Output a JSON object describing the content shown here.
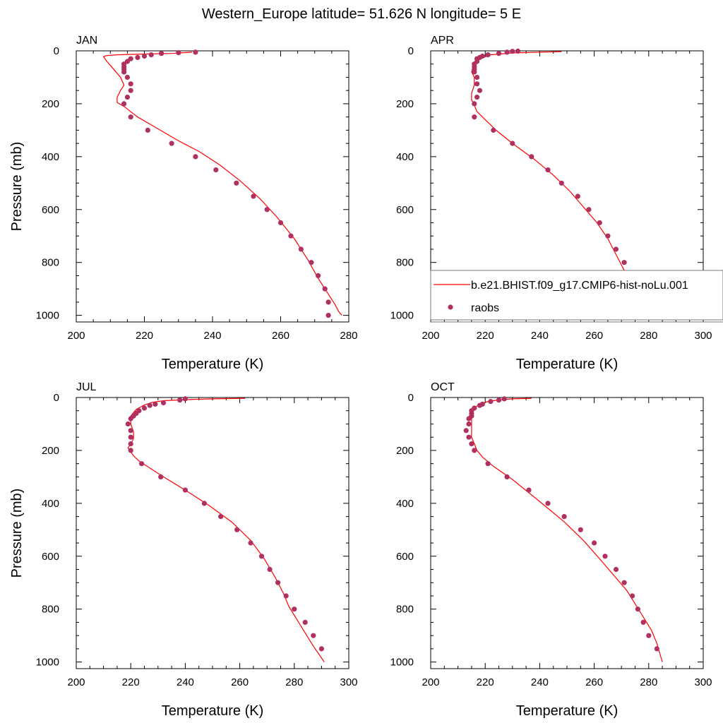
{
  "figure": {
    "title": "Western_Europe  latitude= 51.626 N longitude= 5 E",
    "legend": {
      "model_label": "b.e21.BHIST.f09_g17.CMIP6-hist-noLu.001",
      "obs_label": "raobs"
    }
  },
  "colors": {
    "model_line": "#ff0000",
    "obs_dot": "#b03060",
    "axis": "#000000"
  },
  "chart_data": [
    {
      "type": "scatter",
      "title": "JAN",
      "xlabel": "Temperature (K)",
      "ylabel": "Pressure (mb)",
      "xlim": [
        200,
        280
      ],
      "ylim": [
        1025,
        0
      ],
      "xticks": [
        200,
        220,
        240,
        260,
        280
      ],
      "yticks": [
        0,
        200,
        400,
        600,
        800,
        1000
      ],
      "y_inverted": true,
      "legend": "none",
      "series": [
        {
          "name": "b.e21.BHIST.f09_g17.CMIP6-hist-noLu.001",
          "kind": "line",
          "points": [
            [
              234,
              5
            ],
            [
              228,
              10
            ],
            [
              220,
              12
            ],
            [
              212,
              15
            ],
            [
              209,
              18
            ],
            [
              208,
              22
            ],
            [
              209,
              40
            ],
            [
              211,
              70
            ],
            [
              213,
              100
            ],
            [
              214,
              130
            ],
            [
              213,
              150
            ],
            [
              212,
              175
            ],
            [
              212,
              195
            ],
            [
              214,
              210
            ],
            [
              216,
              230
            ],
            [
              218,
              250
            ],
            [
              222,
              280
            ],
            [
              226,
              310
            ],
            [
              230,
              340
            ],
            [
              236,
              380
            ],
            [
              242,
              430
            ],
            [
              248,
              490
            ],
            [
              254,
              560
            ],
            [
              259,
              630
            ],
            [
              264,
              710
            ],
            [
              268,
              790
            ],
            [
              271,
              860
            ],
            [
              274,
              920
            ],
            [
              276,
              960
            ],
            [
              277,
              985
            ],
            [
              278,
              1000
            ]
          ]
        },
        {
          "name": "raobs",
          "kind": "markers",
          "points": [
            [
              235,
              5
            ],
            [
              230,
              7
            ],
            [
              225,
              10
            ],
            [
              222,
              15
            ],
            [
              220,
              20
            ],
            [
              218,
              25
            ],
            [
              216,
              30
            ],
            [
              215,
              40
            ],
            [
              214,
              50
            ],
            [
              214,
              60
            ],
            [
              214,
              70
            ],
            [
              214,
              80
            ],
            [
              215,
              100
            ],
            [
              216,
              125
            ],
            [
              216,
              150
            ],
            [
              215,
              175
            ],
            [
              214,
              200
            ],
            [
              216,
              250
            ],
            [
              221,
              300
            ],
            [
              228,
              350
            ],
            [
              235,
              400
            ],
            [
              241,
              450
            ],
            [
              247,
              500
            ],
            [
              252,
              550
            ],
            [
              256,
              600
            ],
            [
              260,
              650
            ],
            [
              263,
              700
            ],
            [
              266,
              750
            ],
            [
              269,
              800
            ],
            [
              271,
              850
            ],
            [
              273,
              900
            ],
            [
              274,
              950
            ],
            [
              274,
              1000
            ]
          ]
        }
      ]
    },
    {
      "type": "scatter",
      "title": "APR",
      "xlabel": "Temperature (K)",
      "ylabel": "",
      "xlim": [
        200,
        300
      ],
      "ylim": [
        1025,
        0
      ],
      "xticks": [
        200,
        220,
        240,
        260,
        280,
        300
      ],
      "yticks": [
        0,
        200,
        400,
        600,
        800,
        1000
      ],
      "y_inverted": true,
      "legend": "lower-right",
      "series": [
        {
          "name": "b.e21.BHIST.f09_g17.CMIP6-hist-noLu.001",
          "kind": "line",
          "points": [
            [
              248,
              3
            ],
            [
              240,
              5
            ],
            [
              230,
              8
            ],
            [
              222,
              15
            ],
            [
              218,
              30
            ],
            [
              216,
              50
            ],
            [
              215,
              80
            ],
            [
              216,
              100
            ],
            [
              216,
              130
            ],
            [
              215,
              160
            ],
            [
              215,
              185
            ],
            [
              216,
              205
            ],
            [
              217,
              230
            ],
            [
              220,
              260
            ],
            [
              224,
              300
            ],
            [
              230,
              350
            ],
            [
              238,
              410
            ],
            [
              245,
              470
            ],
            [
              251,
              530
            ],
            [
              256,
              590
            ],
            [
              261,
              650
            ],
            [
              265,
              710
            ],
            [
              268,
              770
            ],
            [
              271,
              830
            ],
            [
              274,
              870
            ],
            [
              277,
              910
            ],
            [
              280,
              950
            ],
            [
              283,
              1000
            ]
          ]
        },
        {
          "name": "raobs",
          "kind": "markers",
          "points": [
            [
              232,
              1
            ],
            [
              230,
              2
            ],
            [
              228,
              5
            ],
            [
              225,
              10
            ],
            [
              221,
              15
            ],
            [
              219,
              20
            ],
            [
              218,
              25
            ],
            [
              217,
              30
            ],
            [
              217,
              40
            ],
            [
              216,
              50
            ],
            [
              216,
              60
            ],
            [
              216,
              70
            ],
            [
              216,
              80
            ],
            [
              217,
              100
            ],
            [
              217,
              125
            ],
            [
              218,
              150
            ],
            [
              217,
              175
            ],
            [
              216,
              200
            ],
            [
              216,
              250
            ],
            [
              223,
              300
            ],
            [
              230,
              350
            ],
            [
              237,
              400
            ],
            [
              243,
              450
            ],
            [
              248,
              500
            ],
            [
              254,
              550
            ],
            [
              258,
              600
            ],
            [
              262,
              650
            ],
            [
              265,
              700
            ],
            [
              268,
              750
            ],
            [
              271,
              800
            ],
            [
              274,
              850
            ],
            [
              277,
              900
            ],
            [
              280,
              950
            ]
          ]
        }
      ]
    },
    {
      "type": "scatter",
      "title": "JUL",
      "xlabel": "Temperature (K)",
      "ylabel": "Pressure (mb)",
      "xlim": [
        200,
        300
      ],
      "ylim": [
        1025,
        0
      ],
      "xticks": [
        200,
        220,
        240,
        260,
        280,
        300
      ],
      "yticks": [
        0,
        200,
        400,
        600,
        800,
        1000
      ],
      "y_inverted": true,
      "legend": "none",
      "series": [
        {
          "name": "b.e21.BHIST.f09_g17.CMIP6-hist-noLu.001",
          "kind": "line",
          "points": [
            [
              262,
              3
            ],
            [
              250,
              5
            ],
            [
              240,
              8
            ],
            [
              232,
              12
            ],
            [
              228,
              18
            ],
            [
              225,
              28
            ],
            [
              222,
              45
            ],
            [
              220,
              70
            ],
            [
              220,
              100
            ],
            [
              221,
              130
            ],
            [
              221,
              155
            ],
            [
              220,
              175
            ],
            [
              219,
              190
            ],
            [
              220,
              205
            ],
            [
              221,
              220
            ],
            [
              223,
              240
            ],
            [
              226,
              260
            ],
            [
              232,
              300
            ],
            [
              240,
              350
            ],
            [
              249,
              410
            ],
            [
              257,
              470
            ],
            [
              264,
              540
            ],
            [
              269,
              610
            ],
            [
              273,
              680
            ],
            [
              276,
              740
            ],
            [
              278,
              790
            ],
            [
              281,
              840
            ],
            [
              284,
              890
            ],
            [
              287,
              940
            ],
            [
              291,
              1000
            ]
          ]
        },
        {
          "name": "raobs",
          "kind": "markers",
          "points": [
            [
              240,
              5
            ],
            [
              238,
              10
            ],
            [
              232,
              20
            ],
            [
              229,
              25
            ],
            [
              227,
              30
            ],
            [
              225,
              40
            ],
            [
              223,
              50
            ],
            [
              222,
              60
            ],
            [
              221,
              70
            ],
            [
              220,
              80
            ],
            [
              219,
              100
            ],
            [
              220,
              125
            ],
            [
              220,
              150
            ],
            [
              220,
              175
            ],
            [
              220,
              200
            ],
            [
              224,
              250
            ],
            [
              231,
              300
            ],
            [
              240,
              350
            ],
            [
              247,
              400
            ],
            [
              253,
              450
            ],
            [
              259,
              500
            ],
            [
              264,
              550
            ],
            [
              268,
              600
            ],
            [
              271,
              650
            ],
            [
              274,
              700
            ],
            [
              277,
              750
            ],
            [
              280,
              800
            ],
            [
              284,
              850
            ],
            [
              287,
              900
            ],
            [
              290,
              950
            ]
          ]
        }
      ]
    },
    {
      "type": "scatter",
      "title": "OCT",
      "xlabel": "Temperature (K)",
      "ylabel": "",
      "xlim": [
        200,
        300
      ],
      "ylim": [
        1025,
        0
      ],
      "xticks": [
        200,
        220,
        240,
        260,
        280,
        300
      ],
      "yticks": [
        0,
        200,
        400,
        600,
        800,
        1000
      ],
      "y_inverted": true,
      "legend": "none",
      "series": [
        {
          "name": "b.e21.BHIST.f09_g17.CMIP6-hist-noLu.001",
          "kind": "line",
          "points": [
            [
              237,
              3
            ],
            [
              230,
              5
            ],
            [
              225,
              9
            ],
            [
              221,
              15
            ],
            [
              218,
              25
            ],
            [
              216,
              40
            ],
            [
              215,
              60
            ],
            [
              215,
              80
            ],
            [
              215,
              100
            ],
            [
              215,
              120
            ],
            [
              215,
              150
            ],
            [
              216,
              175
            ],
            [
              217,
              200
            ],
            [
              219,
              225
            ],
            [
              223,
              260
            ],
            [
              230,
              310
            ],
            [
              236,
              360
            ],
            [
              242,
              410
            ],
            [
              249,
              470
            ],
            [
              256,
              540
            ],
            [
              262,
              610
            ],
            [
              267,
              670
            ],
            [
              272,
              730
            ],
            [
              275,
              780
            ],
            [
              278,
              830
            ],
            [
              281,
              880
            ],
            [
              283,
              930
            ],
            [
              285,
              1000
            ]
          ]
        },
        {
          "name": "raobs",
          "kind": "markers",
          "points": [
            [
              227,
              5
            ],
            [
              225,
              10
            ],
            [
              222,
              15
            ],
            [
              219,
              25
            ],
            [
              218,
              30
            ],
            [
              216,
              40
            ],
            [
              215,
              50
            ],
            [
              215,
              60
            ],
            [
              215,
              70
            ],
            [
              214,
              80
            ],
            [
              214,
              100
            ],
            [
              213,
              125
            ],
            [
              214,
              150
            ],
            [
              215,
              175
            ],
            [
              216,
              200
            ],
            [
              221,
              250
            ],
            [
              228,
              300
            ],
            [
              236,
              350
            ],
            [
              243,
              400
            ],
            [
              249,
              450
            ],
            [
              255,
              500
            ],
            [
              260,
              550
            ],
            [
              264,
              600
            ],
            [
              268,
              650
            ],
            [
              271,
              700
            ],
            [
              274,
              750
            ],
            [
              276,
              800
            ],
            [
              278,
              850
            ],
            [
              280,
              900
            ],
            [
              283,
              950
            ]
          ]
        }
      ]
    }
  ]
}
